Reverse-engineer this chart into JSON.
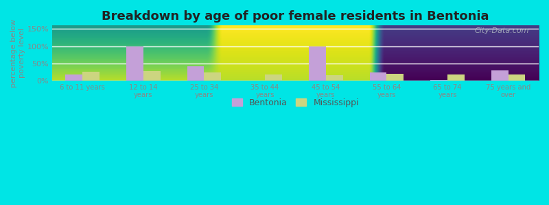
{
  "title": "Breakdown by age of poor female residents in Bentonia",
  "categories": [
    "6 to 11 years",
    "12 to 14\nyears",
    "25 to 34\nyears",
    "35 to 44\nyears",
    "45 to 54\nyears",
    "55 to 64\nyears",
    "65 to 74\nyears",
    "75 years and\nover"
  ],
  "bentonia": [
    18,
    100,
    42,
    0,
    100,
    24,
    3,
    29
  ],
  "mississippi": [
    26,
    27,
    23,
    18,
    15,
    19,
    17,
    17
  ],
  "bentonia_color": "#c4a0d8",
  "mississippi_color": "#ccd580",
  "bar_width": 0.28,
  "ylim": [
    0,
    160
  ],
  "yticks": [
    0,
    50,
    100,
    150
  ],
  "ytick_labels": [
    "0%",
    "50%",
    "100%",
    "150%"
  ],
  "ylabel": "percentage below\npoverty level",
  "plot_bg_top": "#e0eed8",
  "plot_bg_bottom": "#f0f0d8",
  "outer_bg": "#00e5e5",
  "title_fontsize": 13,
  "legend_labels": [
    "Bentonia",
    "Mississippi"
  ],
  "watermark": "City-Data.com",
  "axis_color": "#888888",
  "tick_color": "#888888"
}
